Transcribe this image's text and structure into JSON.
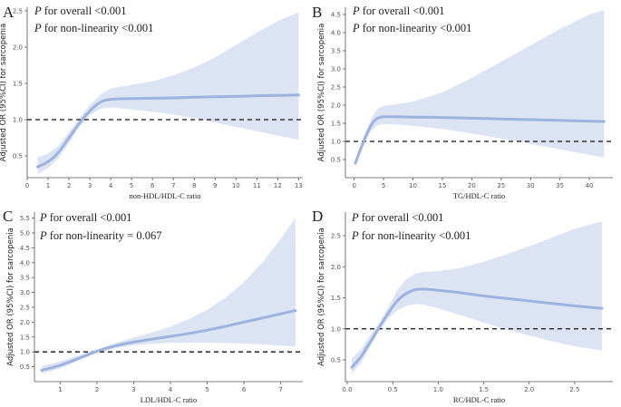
{
  "colors": {
    "curve": "#9db2dc",
    "band": "#dce4f4",
    "reference_line": "#111111",
    "text": "#222222"
  },
  "chart_data": [
    {
      "panel": "A",
      "type": "line",
      "annotation_overall_p": "P",
      "annotation_overall": " for overall <0.001",
      "annotation_nonlin_p": "P",
      "annotation_nonlin": " for non-linearity <0.001",
      "xlabel": "non-HDL/HDL-C ratio",
      "ylabel": "Adjusted OR (95%CI) for sarcopenia",
      "xlim": [
        0,
        13.2
      ],
      "ylim": [
        0.2,
        2.55
      ],
      "xticks": [
        0,
        1,
        2,
        3,
        4,
        5,
        6,
        7,
        8,
        9,
        10,
        11,
        12,
        13
      ],
      "yticks": [
        0.5,
        1.0,
        1.5,
        2.0,
        2.5
      ],
      "ytick_labels": [
        "0.5",
        "1.0",
        "1.5",
        "2.0",
        "2.5"
      ],
      "reference_y": 1.0,
      "x": [
        0.5,
        1.0,
        1.5,
        2.0,
        2.5,
        3.0,
        3.5,
        4.0,
        5.0,
        6.0,
        7.0,
        8.0,
        9.0,
        10.0,
        11.0,
        12.0,
        13.0
      ],
      "or": [
        0.35,
        0.42,
        0.55,
        0.75,
        0.95,
        1.12,
        1.24,
        1.28,
        1.29,
        1.295,
        1.3,
        1.31,
        1.315,
        1.32,
        1.33,
        1.335,
        1.34
      ],
      "lower": [
        0.25,
        0.33,
        0.47,
        0.68,
        0.9,
        1.06,
        1.15,
        1.17,
        1.14,
        1.11,
        1.07,
        1.02,
        0.96,
        0.9,
        0.84,
        0.78,
        0.72
      ],
      "upper": [
        0.48,
        0.53,
        0.64,
        0.83,
        1.02,
        1.2,
        1.34,
        1.43,
        1.48,
        1.53,
        1.61,
        1.72,
        1.86,
        2.03,
        2.2,
        2.36,
        2.48
      ]
    },
    {
      "panel": "B",
      "type": "line",
      "annotation_overall_p": "P",
      "annotation_overall": " for overall <0.001",
      "annotation_nonlin_p": "P",
      "annotation_nonlin": " for non-linearity <0.001",
      "xlabel": "TG/HDL-C ratio",
      "ylabel": "Adjusted OR (95%CI) for sarcopenia",
      "xlim": [
        -1.5,
        44
      ],
      "ylim": [
        0.0,
        4.7
      ],
      "xticks": [
        0,
        5,
        10,
        15,
        20,
        25,
        30,
        35,
        40
      ],
      "yticks": [
        0.5,
        1.0,
        1.5,
        2.0,
        2.5,
        3.0,
        3.5,
        4.0,
        4.5
      ],
      "ytick_labels": [
        "0.5",
        "1.0",
        "1.5",
        "2.0",
        "2.5",
        "3.0",
        "3.5",
        "4.0",
        "4.5"
      ],
      "reference_y": 1.0,
      "x": [
        0.2,
        1,
        2,
        3,
        4,
        5,
        7,
        10,
        15,
        20,
        25,
        30,
        35,
        40,
        42.5
      ],
      "or": [
        0.4,
        0.75,
        1.15,
        1.48,
        1.64,
        1.68,
        1.68,
        1.67,
        1.66,
        1.64,
        1.62,
        1.6,
        1.58,
        1.56,
        1.55
      ],
      "lower": [
        0.3,
        0.65,
        1.05,
        1.32,
        1.45,
        1.48,
        1.47,
        1.43,
        1.34,
        1.22,
        1.08,
        0.93,
        0.78,
        0.63,
        0.55
      ],
      "upper": [
        0.52,
        0.88,
        1.28,
        1.66,
        1.9,
        1.98,
        2.02,
        2.1,
        2.35,
        2.75,
        3.2,
        3.65,
        4.1,
        4.5,
        4.62
      ]
    },
    {
      "panel": "C",
      "type": "line",
      "annotation_overall_p": "P",
      "annotation_overall": " for overall <0.001",
      "annotation_nonlin_p": "P",
      "annotation_nonlin": " for non-linearity = 0.067",
      "xlabel": "LDL/HDL-C ratio",
      "ylabel": "Adjusted OR (95%CI) for sarcopenia",
      "xlim": [
        0.3,
        7.6
      ],
      "ylim": [
        0.0,
        5.7
      ],
      "xticks": [
        1,
        2,
        3,
        4,
        5,
        6,
        7
      ],
      "yticks": [
        0.5,
        1.0,
        1.5,
        2.0,
        2.5,
        3.0,
        3.5,
        4.0,
        4.5,
        5.0,
        5.5
      ],
      "ytick_labels": [
        "0.5",
        "1.0",
        "1.5",
        "2.0",
        "2.5",
        "3.0",
        "3.5",
        "4.0",
        "4.5",
        "5.0",
        "5.5"
      ],
      "reference_y": 1.0,
      "x": [
        0.5,
        1.0,
        1.5,
        2.0,
        2.5,
        3.0,
        3.5,
        4.0,
        4.5,
        5.0,
        5.5,
        6.0,
        6.5,
        7.0,
        7.4
      ],
      "or": [
        0.38,
        0.55,
        0.78,
        1.02,
        1.2,
        1.33,
        1.43,
        1.52,
        1.62,
        1.73,
        1.86,
        2.0,
        2.14,
        2.28,
        2.39
      ],
      "lower": [
        0.27,
        0.45,
        0.7,
        0.96,
        1.12,
        1.22,
        1.27,
        1.3,
        1.31,
        1.31,
        1.3,
        1.28,
        1.25,
        1.21,
        1.18
      ],
      "upper": [
        0.52,
        0.68,
        0.88,
        1.08,
        1.3,
        1.48,
        1.65,
        1.85,
        2.1,
        2.42,
        2.82,
        3.35,
        4.0,
        4.8,
        5.5
      ]
    },
    {
      "panel": "D",
      "type": "line",
      "annotation_overall_p": "P",
      "annotation_overall": " for overall <0.001",
      "annotation_nonlin_p": "P",
      "annotation_nonlin": " for non-linearity <0.001",
      "xlabel": "RC/HDL-C ratio",
      "ylabel": "Adjusted OR (95%CI) for sarcopenia",
      "xlim": [
        -0.02,
        2.92
      ],
      "ylim": [
        0.15,
        2.88
      ],
      "xticks": [
        0.0,
        0.5,
        1.0,
        1.5,
        2.0,
        2.5
      ],
      "xtick_labels": [
        "0.0",
        "0.5",
        "1.0",
        "1.5",
        "2.0",
        "2.5"
      ],
      "yticks": [
        0.5,
        1.0,
        1.5,
        2.0,
        2.5
      ],
      "ytick_labels": [
        "0.5",
        "1.0",
        "1.5",
        "2.0",
        "2.5"
      ],
      "reference_y": 1.0,
      "x": [
        0.05,
        0.15,
        0.25,
        0.35,
        0.45,
        0.55,
        0.65,
        0.75,
        0.85,
        1.0,
        1.25,
        1.5,
        1.75,
        2.0,
        2.25,
        2.5,
        2.8
      ],
      "or": [
        0.38,
        0.55,
        0.78,
        1.02,
        1.25,
        1.45,
        1.57,
        1.63,
        1.64,
        1.62,
        1.58,
        1.53,
        1.49,
        1.45,
        1.41,
        1.37,
        1.33
      ],
      "lower": [
        0.27,
        0.45,
        0.7,
        0.96,
        1.16,
        1.3,
        1.37,
        1.4,
        1.39,
        1.33,
        1.22,
        1.1,
        0.99,
        0.89,
        0.8,
        0.72,
        0.65
      ],
      "upper": [
        0.52,
        0.67,
        0.88,
        1.09,
        1.35,
        1.62,
        1.8,
        1.89,
        1.92,
        1.93,
        1.98,
        2.08,
        2.2,
        2.33,
        2.47,
        2.61,
        2.73
      ]
    }
  ]
}
